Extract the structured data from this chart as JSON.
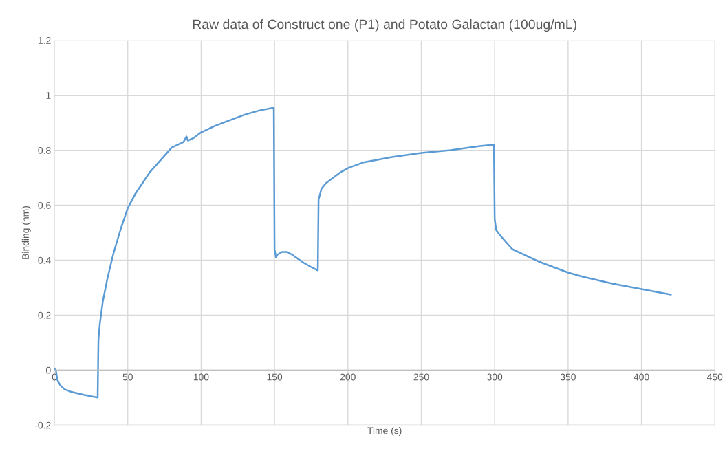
{
  "chart_data": {
    "type": "line",
    "title": "Raw data of Construct one (P1) and Potato Galactan (100ug/mL)",
    "xlabel": "Time (s)",
    "ylabel": "Binding (nm)",
    "x": [
      0,
      1,
      2,
      4,
      7,
      12,
      20,
      29.5,
      30,
      31,
      33,
      36,
      40,
      45,
      50,
      55,
      60,
      65,
      70,
      75,
      80,
      88,
      90,
      91,
      95,
      100,
      110,
      120,
      130,
      140,
      149.5,
      150,
      151,
      152,
      155,
      158,
      162,
      166,
      170,
      175,
      179.5,
      180,
      182,
      185,
      190,
      195,
      200,
      210,
      220,
      230,
      250,
      270,
      290,
      299.5,
      300,
      301,
      303,
      307,
      312,
      320,
      330,
      340,
      350,
      360,
      380,
      400,
      420
    ],
    "series": [
      {
        "color": "#5b9bd5",
        "values": [
          0.005,
          0.0,
          -0.035,
          -0.055,
          -0.07,
          -0.08,
          -0.09,
          -0.1,
          0.11,
          0.17,
          0.25,
          0.33,
          0.42,
          0.51,
          0.59,
          0.64,
          0.68,
          0.72,
          0.75,
          0.78,
          0.81,
          0.83,
          0.85,
          0.835,
          0.845,
          0.865,
          0.89,
          0.91,
          0.93,
          0.945,
          0.955,
          0.44,
          0.41,
          0.42,
          0.43,
          0.43,
          0.42,
          0.405,
          0.39,
          0.375,
          0.363,
          0.62,
          0.66,
          0.68,
          0.7,
          0.72,
          0.735,
          0.755,
          0.765,
          0.775,
          0.79,
          0.8,
          0.815,
          0.82,
          0.55,
          0.51,
          0.495,
          0.47,
          0.44,
          0.42,
          0.395,
          0.375,
          0.355,
          0.34,
          0.315,
          0.295,
          0.275
        ]
      }
    ],
    "xlim": [
      0,
      450
    ],
    "xticks": [
      0,
      50,
      100,
      150,
      200,
      250,
      300,
      350,
      400,
      450
    ],
    "ylim": [
      -0.2,
      1.2
    ],
    "yticks": [
      -0.2,
      0,
      0.2,
      0.4,
      0.6,
      0.8,
      1,
      1.2
    ],
    "grid": true,
    "marker": "none",
    "line_style": "solid"
  }
}
